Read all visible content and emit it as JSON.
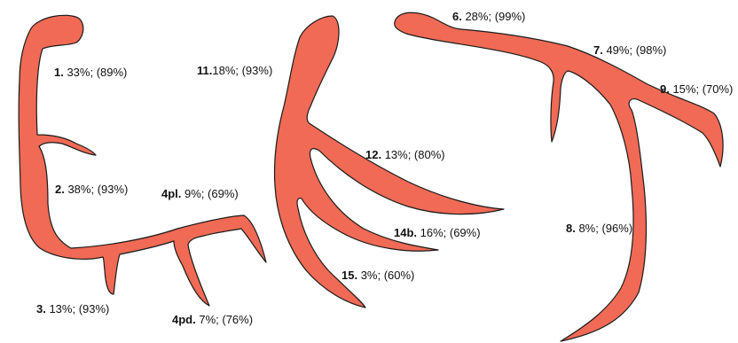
{
  "colors": {
    "vessel": "#f06a55",
    "outline": "#1a1a1a"
  },
  "segments": [
    {
      "id": "s1",
      "num": "1.",
      "text": " 33%; (89%)"
    },
    {
      "id": "s2",
      "num": "2.",
      "text": " 38%; (93%)"
    },
    {
      "id": "s3",
      "num": "3.",
      "text": " 13%; (93%)"
    },
    {
      "id": "s4pl",
      "num": "4pl.",
      "text": " 9%; (69%)"
    },
    {
      "id": "s4pd",
      "num": "4pd.",
      "text": " 7%; (76%)"
    },
    {
      "id": "s11",
      "num": "11.",
      "text": "18%; (93%)"
    },
    {
      "id": "s12",
      "num": "12.",
      "text": " 13%; (80%)"
    },
    {
      "id": "s14b",
      "num": "14b.",
      "text": " 16%; (69%)"
    },
    {
      "id": "s15",
      "num": "15.",
      "text": " 3%; (60%)"
    },
    {
      "id": "s6",
      "num": "6.",
      "text": " 28%; (99%)"
    },
    {
      "id": "s7",
      "num": "7.",
      "text": " 49%; (98%)"
    },
    {
      "id": "s8",
      "num": "8.",
      "text": " 8%; (96%)"
    },
    {
      "id": "s9",
      "num": "9.",
      "text": " 15%; (70%)"
    }
  ]
}
